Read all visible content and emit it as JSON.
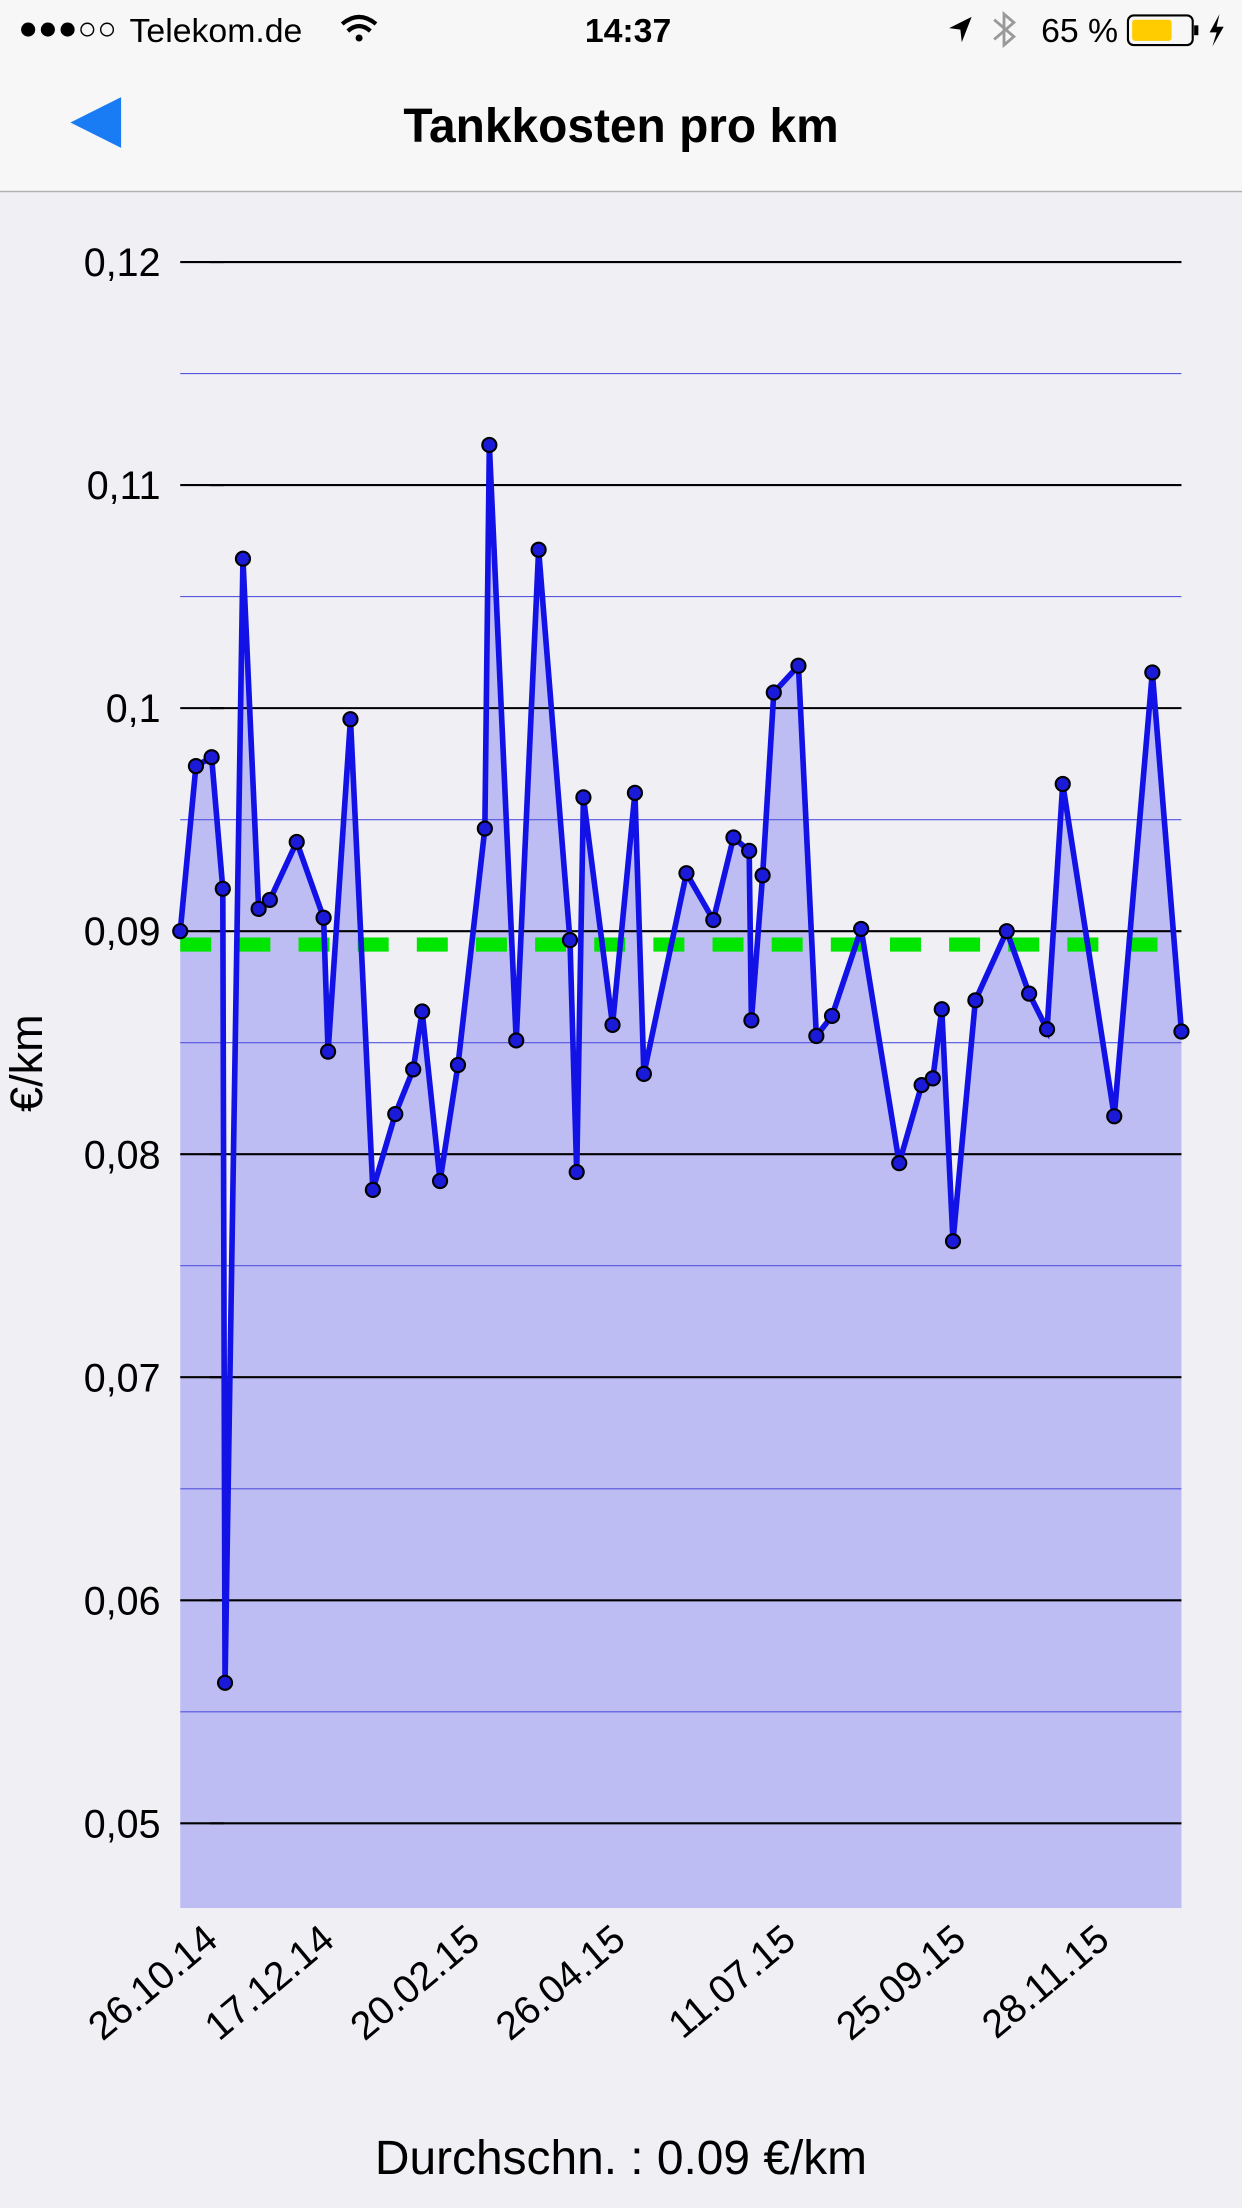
{
  "status_bar": {
    "carrier": "Telekom.de",
    "time": "14:37",
    "battery": "65 %"
  },
  "nav": {
    "title": "Tankkosten pro km"
  },
  "chart_data": {
    "type": "line",
    "y_label": "€/km",
    "x": [
      "2014-10-12",
      "2014-10-19",
      "2014-10-26",
      "2014-10-31",
      "2014-11-01",
      "2014-11-09",
      "2014-11-16",
      "2014-11-21",
      "2014-12-03",
      "2014-12-15",
      "2014-12-17",
      "2014-12-27",
      "2015-01-06",
      "2015-01-16",
      "2015-01-24",
      "2015-01-28",
      "2015-02-05",
      "2015-02-13",
      "2015-02-25",
      "2015-02-27",
      "2015-03-11",
      "2015-03-21",
      "2015-04-04",
      "2015-04-07",
      "2015-04-10",
      "2015-04-23",
      "2015-05-03",
      "2015-05-07",
      "2015-05-26",
      "2015-06-07",
      "2015-06-16",
      "2015-06-23",
      "2015-06-24",
      "2015-06-29",
      "2015-07-04",
      "2015-07-15",
      "2015-07-23",
      "2015-07-30",
      "2015-08-12",
      "2015-08-29",
      "2015-09-08",
      "2015-09-13",
      "2015-09-17",
      "2015-09-22",
      "2015-10-02",
      "2015-10-16",
      "2015-10-26",
      "2015-11-03",
      "2015-11-10",
      "2015-12-03",
      "2015-12-20",
      "2016-01-02"
    ],
    "values": [
      0.09,
      0.0974,
      0.0978,
      0.0919,
      0.0563,
      0.1067,
      0.091,
      0.0914,
      0.094,
      0.0906,
      0.0846,
      0.0995,
      0.0784,
      0.0818,
      0.0838,
      0.0864,
      0.0788,
      0.084,
      0.0946,
      0.1118,
      0.0851,
      0.1071,
      0.0896,
      0.0792,
      0.096,
      0.0858,
      0.0962,
      0.0836,
      0.0926,
      0.0905,
      0.0942,
      0.0936,
      0.086,
      0.0925,
      0.1007,
      0.1019,
      0.0853,
      0.0862,
      0.0901,
      0.0796,
      0.0831,
      0.0834,
      0.0865,
      0.0761,
      0.0869,
      0.09,
      0.0872,
      0.0856,
      0.0966,
      0.0817,
      0.1016,
      0.0855
    ],
    "color": "#1212e6",
    "fill_color": "#bdbdf3",
    "marker_color": "#1a1ad8",
    "average": 0.0894,
    "average_color": "#00e600",
    "xlim": [
      "2014-10-12",
      "2016-01-02"
    ],
    "xticks": [
      {
        "value": "2014-10-26",
        "label": "26.10.14"
      },
      {
        "value": "2014-12-17",
        "label": "17.12.14"
      },
      {
        "value": "2015-02-20",
        "label": "20.02.15"
      },
      {
        "value": "2015-04-26",
        "label": "26.04.15"
      },
      {
        "value": "2015-07-11",
        "label": "11.07.15"
      },
      {
        "value": "2015-09-25",
        "label": "25.09.15"
      },
      {
        "value": "2015-11-28",
        "label": "28.11.15"
      }
    ],
    "ylim": [
      0.0462,
      0.1231
    ],
    "yticks": [
      {
        "value": 0.05,
        "label": "0,05"
      },
      {
        "value": 0.06,
        "label": "0,06"
      },
      {
        "value": 0.07,
        "label": "0,07"
      },
      {
        "value": 0.08,
        "label": "0,08"
      },
      {
        "value": 0.09,
        "label": "0,09"
      },
      {
        "value": 0.1,
        "label": "0,1"
      },
      {
        "value": 0.11,
        "label": "0,11"
      },
      {
        "value": 0.12,
        "label": "0,12"
      }
    ],
    "minor_yticks": [
      0.055,
      0.065,
      0.075,
      0.085,
      0.095,
      0.105,
      0.115
    ],
    "grid": true,
    "footer": "Durchschn. : 0.09 €/km"
  }
}
